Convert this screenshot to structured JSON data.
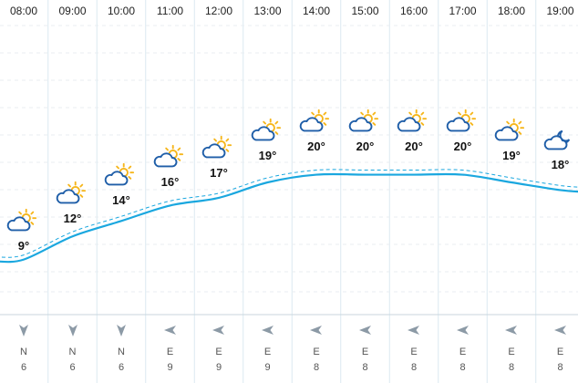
{
  "forecast": {
    "hours": [
      {
        "time": "08:00",
        "temp": "9°",
        "icon": "partly-cloudy-icon",
        "wind_dir": "N",
        "wind_speed": "6"
      },
      {
        "time": "09:00",
        "temp": "12°",
        "icon": "partly-cloudy-icon",
        "wind_dir": "N",
        "wind_speed": "6"
      },
      {
        "time": "10:00",
        "temp": "14°",
        "icon": "partly-cloudy-icon",
        "wind_dir": "N",
        "wind_speed": "6"
      },
      {
        "time": "11:00",
        "temp": "16°",
        "icon": "partly-cloudy-icon",
        "wind_dir": "E",
        "wind_speed": "9"
      },
      {
        "time": "12:00",
        "temp": "17°",
        "icon": "partly-cloudy-icon",
        "wind_dir": "E",
        "wind_speed": "9"
      },
      {
        "time": "13:00",
        "temp": "19°",
        "icon": "partly-cloudy-icon",
        "wind_dir": "E",
        "wind_speed": "9"
      },
      {
        "time": "14:00",
        "temp": "20°",
        "icon": "partly-cloudy-icon",
        "wind_dir": "E",
        "wind_speed": "8"
      },
      {
        "time": "15:00",
        "temp": "20°",
        "icon": "partly-cloudy-icon",
        "wind_dir": "E",
        "wind_speed": "8"
      },
      {
        "time": "16:00",
        "temp": "20°",
        "icon": "partly-cloudy-icon",
        "wind_dir": "E",
        "wind_speed": "8"
      },
      {
        "time": "17:00",
        "temp": "20°",
        "icon": "partly-cloudy-icon",
        "wind_dir": "E",
        "wind_speed": "8"
      },
      {
        "time": "18:00",
        "temp": "19°",
        "icon": "partly-cloudy-icon",
        "wind_dir": "E",
        "wind_speed": "8"
      },
      {
        "time": "19:00",
        "temp": "18°",
        "icon": "cloudy-night-icon",
        "wind_dir": "E",
        "wind_speed": "8"
      }
    ]
  },
  "chart_data": {
    "type": "line",
    "x": [
      "08:00",
      "09:00",
      "10:00",
      "11:00",
      "12:00",
      "13:00",
      "14:00",
      "15:00",
      "16:00",
      "17:00",
      "18:00",
      "19:00"
    ],
    "series": [
      {
        "values": [
          9,
          12,
          14,
          16,
          17,
          19,
          20,
          20,
          20,
          20,
          19,
          18
        ]
      }
    ],
    "grid": true
  },
  "colors": {
    "line": "#1aa7df",
    "grid": "#dbe9f1",
    "cloud": "#1f5ea8",
    "sun": "#f6b61b",
    "arrow": "#8c9aa6"
  }
}
